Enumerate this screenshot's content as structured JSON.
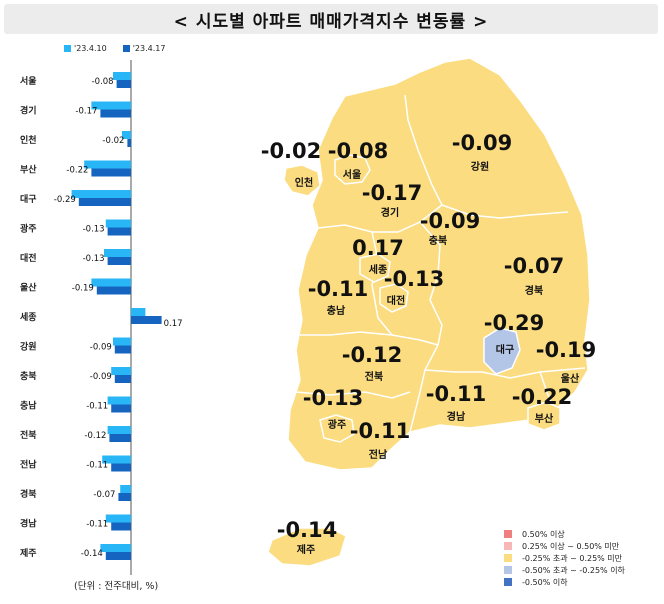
{
  "title": "< 시도별 아파트 매매가격지수 변동률 >",
  "series_legend": [
    {
      "label": "'23.4.10",
      "color": "#29b6f6"
    },
    {
      "label": "'23.4.17",
      "color": "#1565c0"
    }
  ],
  "unit_note": "(단위 : 전주대비, %)",
  "chart_data": {
    "type": "bar",
    "orientation": "horizontal",
    "categories": [
      "서울",
      "경기",
      "인천",
      "부산",
      "대구",
      "광주",
      "대전",
      "울산",
      "세종",
      "강원",
      "충북",
      "충남",
      "전북",
      "전남",
      "경북",
      "경남",
      "제주"
    ],
    "series": [
      {
        "name": "'23.4.10",
        "color": "#29b6f6",
        "values": [
          -0.1,
          -0.22,
          -0.05,
          -0.26,
          -0.33,
          -0.14,
          -0.15,
          -0.22,
          0.08,
          -0.1,
          -0.11,
          -0.13,
          -0.13,
          -0.16,
          -0.06,
          -0.14,
          -0.17
        ]
      },
      {
        "name": "'23.4.17",
        "color": "#1565c0",
        "values": [
          -0.08,
          -0.17,
          -0.02,
          -0.22,
          -0.29,
          -0.13,
          -0.13,
          -0.19,
          0.17,
          -0.09,
          -0.09,
          -0.11,
          -0.12,
          -0.11,
          -0.07,
          -0.11,
          -0.14
        ]
      }
    ],
    "data_labels": [
      "-0.08",
      "-0.17",
      "-0.02",
      "-0.22",
      "-0.29",
      "-0.13",
      "-0.13",
      "-0.19",
      "0.17",
      "-0.09",
      "-0.09",
      "-0.11",
      "-0.12",
      "-0.11",
      "-0.07",
      "-0.11",
      "-0.14"
    ]
  },
  "map": {
    "regions": [
      {
        "name": "인천",
        "value": "-0.02",
        "color": "#fbdc80"
      },
      {
        "name": "서울",
        "value": "-0.08",
        "color": "#fbdc80"
      },
      {
        "name": "강원",
        "value": "-0.09",
        "color": "#fbdc80"
      },
      {
        "name": "경기",
        "value": "-0.17",
        "color": "#fbdc80"
      },
      {
        "name": "충북",
        "value": "-0.09",
        "color": "#fbdc80"
      },
      {
        "name": "세종",
        "value": "0.17",
        "color": "#fbdc80"
      },
      {
        "name": "대전",
        "value": "-0.13",
        "color": "#fbdc80"
      },
      {
        "name": "충남",
        "value": "-0.11",
        "color": "#fbdc80"
      },
      {
        "name": "경북",
        "value": "-0.07",
        "color": "#fbdc80"
      },
      {
        "name": "대구",
        "value": "-0.29",
        "color": "#b4c6e7"
      },
      {
        "name": "전북",
        "value": "-0.12",
        "color": "#fbdc80"
      },
      {
        "name": "울산",
        "value": "-0.19",
        "color": "#fbdc80"
      },
      {
        "name": "광주",
        "value": "-0.13",
        "color": "#fbdc80"
      },
      {
        "name": "경남",
        "value": "-0.11",
        "color": "#fbdc80"
      },
      {
        "name": "부산",
        "value": "-0.22",
        "color": "#fbdc80"
      },
      {
        "name": "전남",
        "value": "-0.11",
        "color": "#fbdc80"
      },
      {
        "name": "제주",
        "value": "-0.14",
        "color": "#fbdc80"
      }
    ],
    "legend": [
      {
        "label": "0.50% 이상",
        "color": "#f08080"
      },
      {
        "label": "0.25% 이상 ~ 0.50% 미만",
        "color": "#f7b7b7"
      },
      {
        "label": "-0.25% 초과 ~ 0.25% 미만",
        "color": "#fbdc80"
      },
      {
        "label": "-0.50% 초과 ~ -0.25% 이하",
        "color": "#b4c6e7"
      },
      {
        "label": "-0.50% 이하",
        "color": "#4472c4"
      }
    ]
  }
}
